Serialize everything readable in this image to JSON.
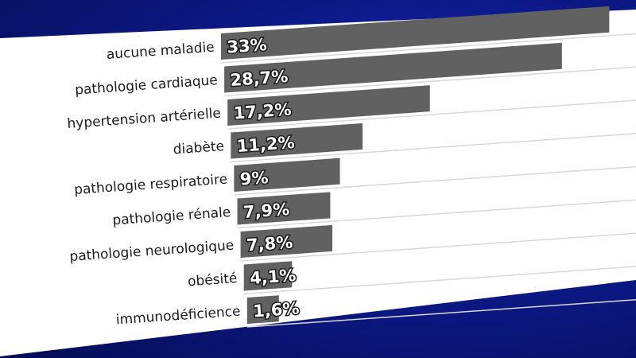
{
  "chart_data": {
    "type": "bar",
    "orientation": "horizontal",
    "categories": [
      "aucune maladie",
      "pathologie cardiaque",
      "hypertension artérielle",
      "diabète",
      "pathologie respiratoire",
      "pathologie rénale",
      "pathologie neurologique",
      "obésité",
      "immunodéficience"
    ],
    "values": [
      33,
      28.7,
      17.2,
      11.2,
      9,
      7.9,
      7.8,
      4.1,
      1.6
    ],
    "value_labels": [
      "33%",
      "28,7%",
      "17,2%",
      "11,2%",
      "9%",
      "7,9%",
      "7,8%",
      "4,1%",
      "1,6%"
    ],
    "title": "",
    "xlabel": "",
    "ylabel": "",
    "xlim": [
      0,
      30
    ],
    "grid": true,
    "colors": {
      "bar": "#616161",
      "panel": "#ffffff",
      "background": "#0d1a8a",
      "grid": "#d8d8d8",
      "label_text": "#1a1a1a",
      "value_text": "#ffffff"
    }
  }
}
